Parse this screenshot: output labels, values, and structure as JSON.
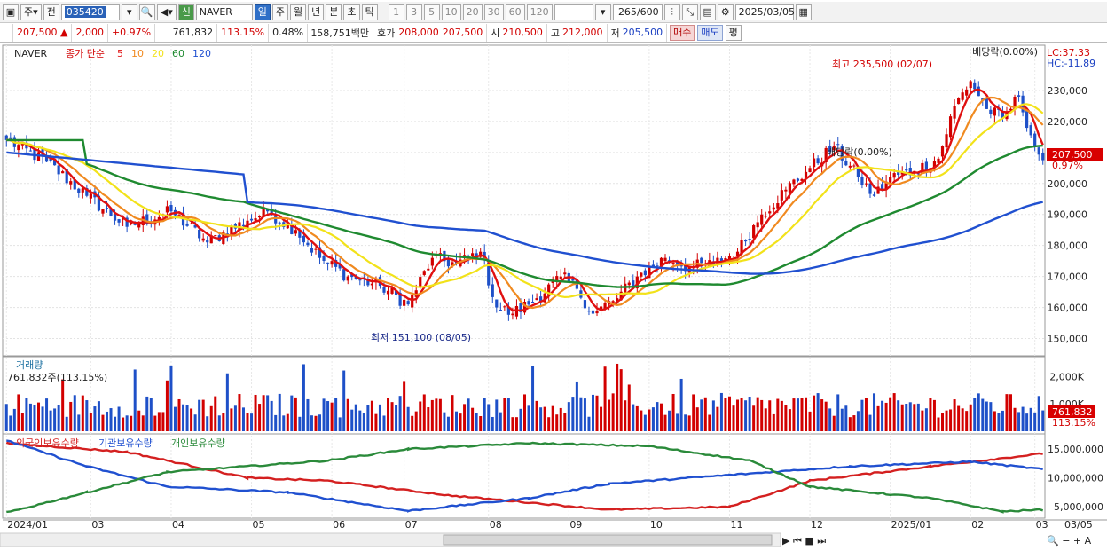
{
  "toolbar": {
    "market": "주",
    "prev": "전",
    "code": "035420",
    "stock_name": "NAVER",
    "badge": "신",
    "periods": [
      "일",
      "주",
      "월",
      "년",
      "분",
      "초",
      "틱"
    ],
    "selected_period": "일",
    "intervals": [
      "1",
      "3",
      "5",
      "10",
      "20",
      "30",
      "60",
      "120"
    ],
    "count": "265",
    "count_total": "/600",
    "date": "2025/03/05"
  },
  "quote": {
    "price": "207,500",
    "change": "2,000",
    "change_pct": "+0.97%",
    "volume": "761,832",
    "volume_ratio": "113.15%",
    "turnover": "0.48%",
    "amount": "158,751백만",
    "ask_label": "호가",
    "ask1": "208,000",
    "ask2": "207,500",
    "open_label": "시",
    "open": "210,500",
    "high_label": "고",
    "high": "212,000",
    "low_label": "저",
    "low": "205,500",
    "buy": "매수",
    "sell": "매도",
    "eval": "평"
  },
  "colors": {
    "up": "#d20000",
    "down": "#1e50c8",
    "ma5": "#e01010",
    "ma10": "#f08a20",
    "ma20": "#f2e21a",
    "ma60": "#1f8a30",
    "ma120": "#2050d0"
  },
  "chart_data": [
    {
      "type": "candlestick",
      "title": "NAVER",
      "legend": [
        "종가 단순",
        "5",
        "10",
        "20",
        "60",
        "120"
      ],
      "ylim": [
        145000,
        240000
      ],
      "yticks": [
        "230,000",
        "220,000",
        "210,000",
        "200,000",
        "190,000",
        "180,000",
        "170,000",
        "160,000",
        "150,000"
      ],
      "ytick_values": [
        230000,
        220000,
        210000,
        200000,
        190000,
        180000,
        170000,
        160000,
        150000
      ],
      "xtick_labels": [
        "2024/01",
        "03",
        "04",
        "05",
        "06",
        "07",
        "08",
        "09",
        "10",
        "11",
        "12",
        "2025/01",
        "02",
        "03"
      ],
      "xtick_index": [
        0,
        21,
        41,
        61,
        81,
        99,
        120,
        140,
        160,
        180,
        200,
        220,
        240,
        256
      ],
      "key_close": [
        {
          "i": 0,
          "v": 214000
        },
        {
          "i": 10,
          "v": 207000
        },
        {
          "i": 20,
          "v": 196000
        },
        {
          "i": 30,
          "v": 186000
        },
        {
          "i": 41,
          "v": 191000
        },
        {
          "i": 50,
          "v": 181000
        },
        {
          "i": 60,
          "v": 188000
        },
        {
          "i": 65,
          "v": 191000
        },
        {
          "i": 72,
          "v": 185000
        },
        {
          "i": 78,
          "v": 176000
        },
        {
          "i": 85,
          "v": 170000
        },
        {
          "i": 93,
          "v": 167000
        },
        {
          "i": 100,
          "v": 161000
        },
        {
          "i": 106,
          "v": 176000
        },
        {
          "i": 112,
          "v": 174000
        },
        {
          "i": 118,
          "v": 178000
        },
        {
          "i": 122,
          "v": 160000
        },
        {
          "i": 126,
          "v": 158000
        },
        {
          "i": 132,
          "v": 163000
        },
        {
          "i": 138,
          "v": 170000
        },
        {
          "i": 142,
          "v": 166000
        },
        {
          "i": 146,
          "v": 158000
        },
        {
          "i": 152,
          "v": 163000
        },
        {
          "i": 157,
          "v": 170000
        },
        {
          "i": 164,
          "v": 176000
        },
        {
          "i": 170,
          "v": 173000
        },
        {
          "i": 176,
          "v": 174000
        },
        {
          "i": 182,
          "v": 178000
        },
        {
          "i": 188,
          "v": 190000
        },
        {
          "i": 194,
          "v": 198000
        },
        {
          "i": 200,
          "v": 205000
        },
        {
          "i": 206,
          "v": 212000
        },
        {
          "i": 212,
          "v": 202000
        },
        {
          "i": 216,
          "v": 196000
        },
        {
          "i": 220,
          "v": 202000
        },
        {
          "i": 226,
          "v": 204000
        },
        {
          "i": 232,
          "v": 208000
        },
        {
          "i": 236,
          "v": 225000
        },
        {
          "i": 240,
          "v": 233000
        },
        {
          "i": 244,
          "v": 224000
        },
        {
          "i": 248,
          "v": 221000
        },
        {
          "i": 252,
          "v": 228000
        },
        {
          "i": 256,
          "v": 212000
        },
        {
          "i": 258,
          "v": 207500
        }
      ],
      "ma5_last": 213000,
      "ma20_last": 221000,
      "ma60_last": 211000,
      "ma120_last": 193000,
      "annotations": {
        "high": "최고 235,500 (02/07)",
        "low": "최저 151,100 (08/05)",
        "dividend": "배당락(0.00%)",
        "dividend2": "배당락(0.00%)",
        "lc": "LC:37.33",
        "hc": "HC:-11.89",
        "last_price": "207,500",
        "last_pct": "0.97%"
      }
    },
    {
      "type": "bar",
      "title": "거래량",
      "subtitle": "761,832주(113.15%)",
      "yticks": [
        "2,000K",
        "1,000K"
      ],
      "ytick_values": [
        2000000,
        1000000
      ],
      "last_value": "761,832",
      "last_pct": "113.15%"
    },
    {
      "type": "line",
      "series": [
        {
          "name": "외국인보유수량",
          "color": "#d42020"
        },
        {
          "name": "기관보유수량",
          "color": "#2050d0"
        },
        {
          "name": "개인보유수량",
          "color": "#2a8a3a"
        }
      ],
      "yticks": [
        "15,000,000",
        "10,000,000",
        "5,000,000"
      ],
      "ytick_values": [
        15000000,
        10000000,
        5000000
      ]
    }
  ],
  "footer_right": "03/05"
}
